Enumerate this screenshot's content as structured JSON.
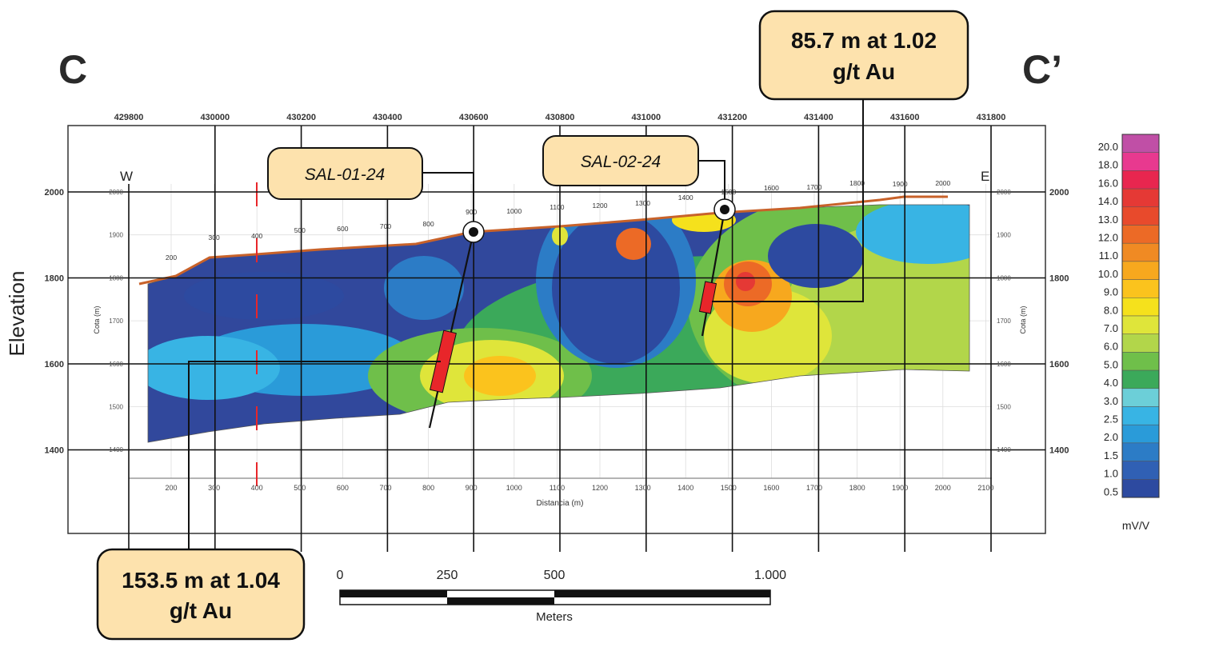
{
  "section": {
    "start_label": "C",
    "end_label": "C’",
    "west_label": "W",
    "east_label": "E",
    "vertical_axis_label": "Elevation"
  },
  "top_axis_ticks": [
    "429800",
    "430000",
    "430200",
    "430400",
    "430600",
    "430800",
    "431000",
    "431200",
    "431400",
    "431600",
    "431800"
  ],
  "elevation_ticks": [
    "2000",
    "1800",
    "1600",
    "1400"
  ],
  "inner_profile": {
    "distance_ticks": [
      "200",
      "300",
      "400",
      "500",
      "600",
      "700",
      "800",
      "900",
      "1000",
      "1100",
      "1200",
      "1300",
      "1400",
      "1500",
      "1600",
      "1700",
      "1800",
      "1900",
      "2000",
      "2100"
    ],
    "surface_labels": [
      "200",
      "300",
      "400",
      "500",
      "600",
      "700",
      "800",
      "900",
      "1000",
      "1100",
      "1200",
      "1300",
      "1400",
      "1500",
      "1600",
      "1700",
      "1800",
      "1900",
      "2000"
    ],
    "cota_ticks": [
      "2000",
      "1900",
      "1800",
      "1700",
      "1600",
      "1500",
      "1400"
    ],
    "cota_label": "Cota (m)",
    "distance_label": "Distancia (m)"
  },
  "drillholes": [
    {
      "name": "SAL-01-24"
    },
    {
      "name": "SAL-02-24"
    }
  ],
  "intercepts": [
    {
      "text_line1": "153.5 m at 1.04",
      "text_line2": "g/t Au",
      "hole": "SAL-01-24"
    },
    {
      "text_line1": "85.7 m at 1.02",
      "text_line2": "g/t Au",
      "hole": "SAL-02-24"
    }
  ],
  "colorbar": {
    "unit": "mV/V",
    "levels": [
      "20.0",
      "18.0",
      "16.0",
      "14.0",
      "13.0",
      "12.0",
      "11.0",
      "10.0",
      "9.0",
      "8.0",
      "7.0",
      "6.0",
      "5.0",
      "4.0",
      "3.0",
      "2.5",
      "2.0",
      "1.5",
      "1.0",
      "0.5"
    ],
    "colors": [
      "#c04fa6",
      "#e8398f",
      "#e8264f",
      "#e53935",
      "#e84a2c",
      "#ec6a26",
      "#f08a23",
      "#f7a81e",
      "#fbc31d",
      "#f5e11c",
      "#dfe53a",
      "#b2d64a",
      "#6fbf4a",
      "#3ba95a",
      "#6ccfd8",
      "#38b4e4",
      "#2a9bd9",
      "#2c7cc6",
      "#3060b4",
      "#2d4aa0"
    ]
  },
  "scale_bar": {
    "labels": [
      "0",
      "250",
      "500",
      "1.000"
    ],
    "unit": "Meters"
  },
  "colors": {
    "callout_fill": "#fde2ad",
    "callout_stroke": "#111111",
    "intercept": "#e8262a",
    "topography": "#c8622a"
  }
}
